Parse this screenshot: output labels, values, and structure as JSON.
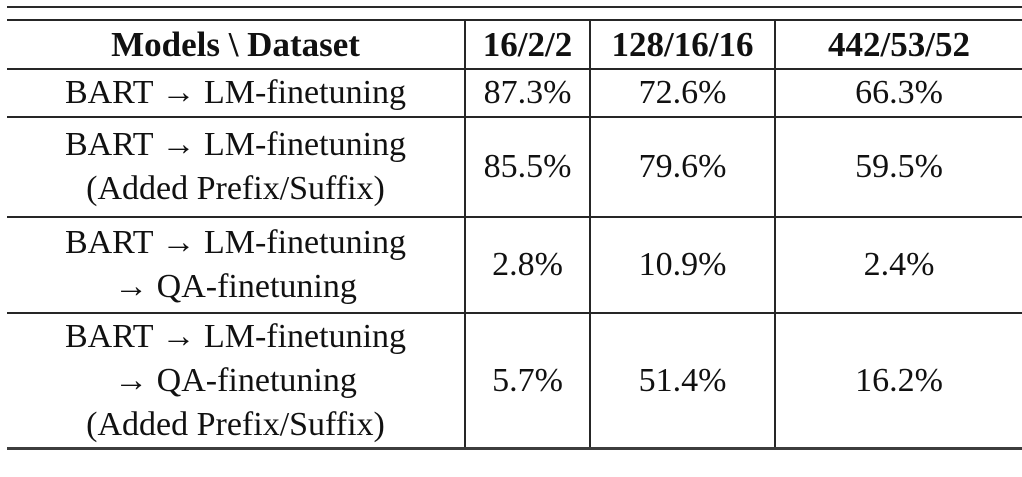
{
  "table": {
    "header": {
      "models_dataset": "Models \\ Dataset",
      "datasets": [
        "16/2/2",
        "128/16/16",
        "442/53/52"
      ]
    },
    "rows": [
      {
        "model_lines": [
          "BART → LM-finetuning"
        ],
        "values": [
          "87.3%",
          "72.6%",
          "66.3%"
        ]
      },
      {
        "model_lines": [
          "BART → LM-finetuning",
          "(Added Prefix/Suffix)"
        ],
        "values": [
          "85.5%",
          "79.6%",
          "59.5%"
        ]
      },
      {
        "model_lines": [
          "BART → LM-finetuning",
          "→ QA-finetuning"
        ],
        "values": [
          "2.8%",
          "10.9%",
          "2.4%"
        ]
      },
      {
        "model_lines": [
          "BART → LM-finetuning",
          "→ QA-finetuning",
          "(Added Prefix/Suffix)"
        ],
        "values": [
          "5.7%",
          "51.4%",
          "16.2%"
        ]
      }
    ],
    "colors": {
      "text": "#111111",
      "rule": "#262626",
      "background": "#ffffff"
    }
  }
}
